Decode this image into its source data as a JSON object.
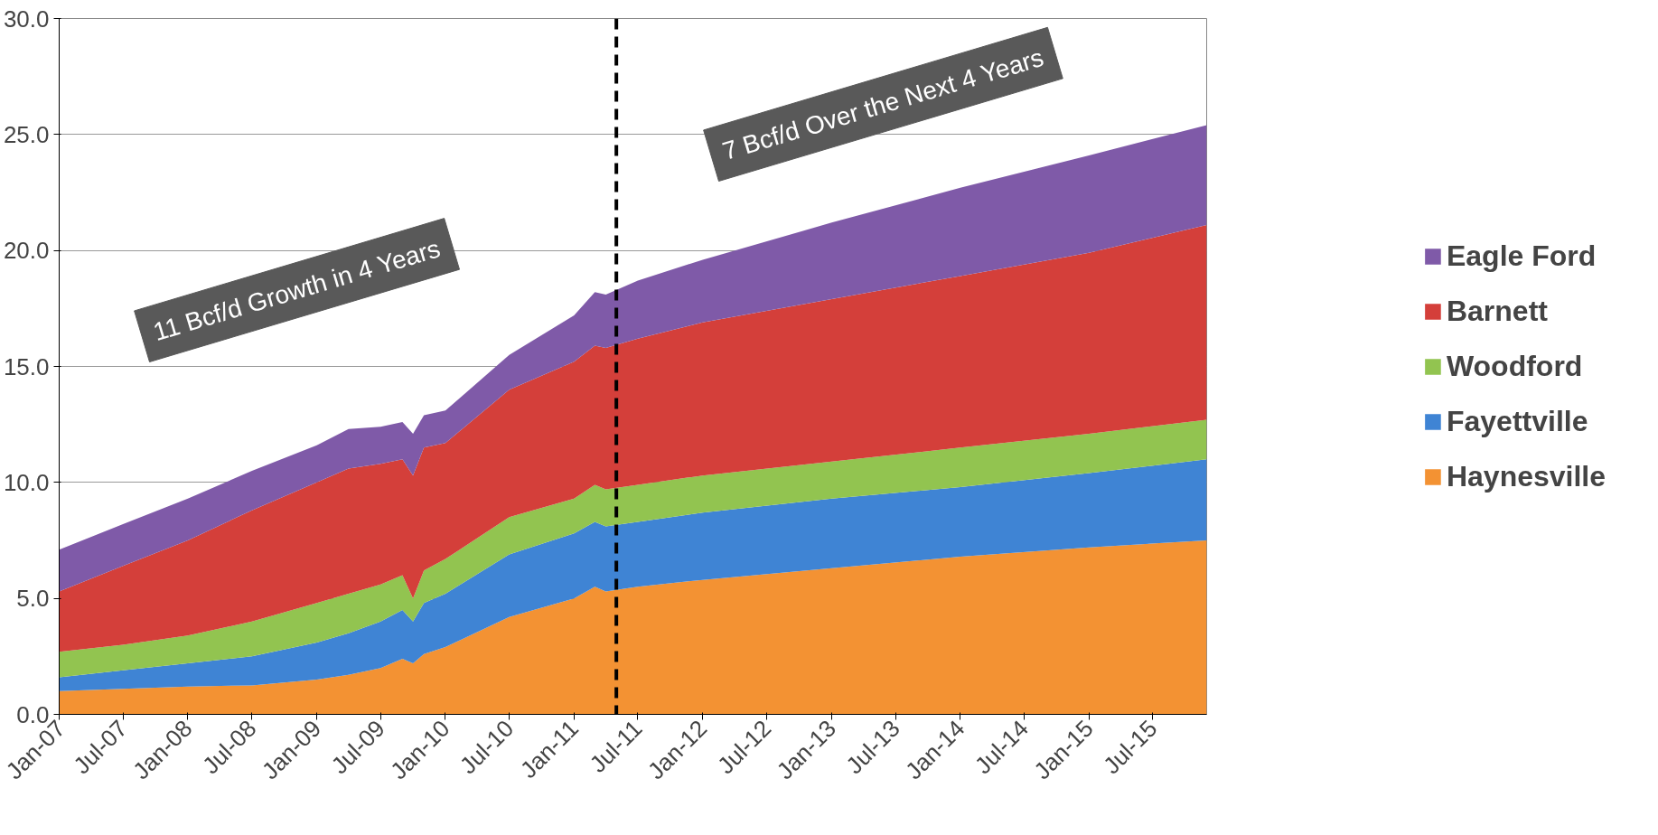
{
  "chart_data": {
    "type": "area",
    "stacked": true,
    "x": [
      "2007-01",
      "2007-07",
      "2008-01",
      "2008-07",
      "2009-01",
      "2009-04",
      "2009-07",
      "2009-09",
      "2009-10",
      "2009-11",
      "2010-01",
      "2010-07",
      "2011-01",
      "2011-03",
      "2011-04",
      "2011-07",
      "2012-01",
      "2013-01",
      "2014-01",
      "2015-01",
      "2015-12"
    ],
    "series": [
      {
        "name": "Haynesville",
        "color": "#f39233",
        "values": [
          1.0,
          1.1,
          1.2,
          1.25,
          1.5,
          1.7,
          2.0,
          2.4,
          2.2,
          2.6,
          2.9,
          4.2,
          5.0,
          5.5,
          5.3,
          5.5,
          5.8,
          6.3,
          6.8,
          7.2,
          7.5
        ]
      },
      {
        "name": "Fayettville",
        "color": "#3f84d4",
        "values": [
          0.6,
          0.8,
          1.0,
          1.25,
          1.6,
          1.8,
          2.0,
          2.1,
          1.8,
          2.2,
          2.3,
          2.7,
          2.8,
          2.8,
          2.8,
          2.8,
          2.9,
          3.0,
          3.0,
          3.2,
          3.5
        ]
      },
      {
        "name": "Woodford",
        "color": "#92c450",
        "values": [
          1.1,
          1.1,
          1.2,
          1.5,
          1.7,
          1.7,
          1.6,
          1.5,
          1.0,
          1.4,
          1.5,
          1.6,
          1.5,
          1.6,
          1.6,
          1.6,
          1.6,
          1.6,
          1.7,
          1.7,
          1.7
        ]
      },
      {
        "name": "Barnett",
        "color": "#d43f3a",
        "values": [
          2.6,
          3.4,
          4.1,
          4.8,
          5.2,
          5.4,
          5.2,
          5.0,
          5.3,
          5.3,
          5.0,
          5.5,
          5.9,
          6.0,
          6.1,
          6.3,
          6.6,
          7.0,
          7.4,
          7.8,
          8.4
        ]
      },
      {
        "name": "Eagle Ford",
        "color": "#7f5aa8",
        "values": [
          1.8,
          1.8,
          1.8,
          1.7,
          1.6,
          1.7,
          1.6,
          1.6,
          1.8,
          1.4,
          1.4,
          1.5,
          2.0,
          2.3,
          2.3,
          2.5,
          2.7,
          3.3,
          3.8,
          4.2,
          4.3
        ]
      }
    ],
    "xlim": [
      "2007-01",
      "2015-12"
    ],
    "xticks": [
      {
        "value": "2007-01",
        "label": "Jan-07"
      },
      {
        "value": "2007-07",
        "label": "Jul-07"
      },
      {
        "value": "2008-01",
        "label": "Jan-08"
      },
      {
        "value": "2008-07",
        "label": "Jul-08"
      },
      {
        "value": "2009-01",
        "label": "Jan-09"
      },
      {
        "value": "2009-07",
        "label": "Jul-09"
      },
      {
        "value": "2010-01",
        "label": "Jan-10"
      },
      {
        "value": "2010-07",
        "label": "Jul-10"
      },
      {
        "value": "2011-01",
        "label": "Jan-11"
      },
      {
        "value": "2011-07",
        "label": "Jul-11"
      },
      {
        "value": "2012-01",
        "label": "Jan-12"
      },
      {
        "value": "2012-07",
        "label": "Jul-12"
      },
      {
        "value": "2013-01",
        "label": "Jan-13"
      },
      {
        "value": "2013-07",
        "label": "Jul-13"
      },
      {
        "value": "2014-01",
        "label": "Jan-14"
      },
      {
        "value": "2014-07",
        "label": "Jul-14"
      },
      {
        "value": "2015-01",
        "label": "Jan-15"
      },
      {
        "value": "2015-07",
        "label": "Jul-15"
      }
    ],
    "ylim": [
      0,
      30
    ],
    "yticks": [
      {
        "value": 0,
        "label": "0.0"
      },
      {
        "value": 5,
        "label": "5.0"
      },
      {
        "value": 10,
        "label": "10.0"
      },
      {
        "value": 15,
        "label": "15.0"
      },
      {
        "value": 20,
        "label": "20.0"
      },
      {
        "value": 25,
        "label": "25.0"
      },
      {
        "value": 30,
        "label": "30.0"
      }
    ],
    "grid": "y",
    "legend": "right",
    "ref_lines": [
      {
        "axis": "x",
        "value": "2011-05",
        "color": "#000000",
        "line_style": "dashed"
      }
    ],
    "annotations": [
      "11 Bcf/d Growth in 4 Years",
      "7 Bcf/d Over the Next 4 Years"
    ]
  }
}
